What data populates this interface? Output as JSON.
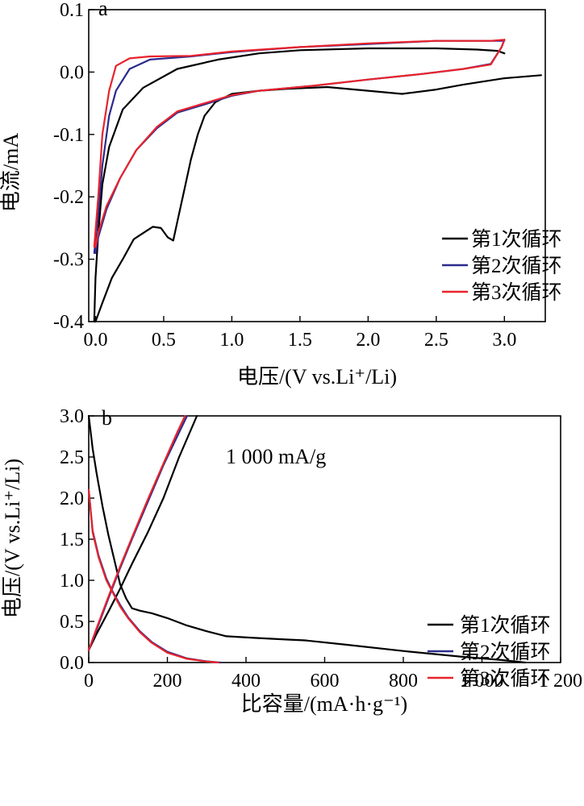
{
  "chart_data": [
    {
      "type": "line",
      "panel_label": "a",
      "xlabel": "电压/(V vs.Li⁺/Li)",
      "ylabel": "电流/mA",
      "xlim": [
        -0.05,
        3.3
      ],
      "ylim": [
        -0.4,
        0.1
      ],
      "xticks": [
        0.0,
        0.5,
        1.0,
        1.5,
        2.0,
        2.5,
        3.0
      ],
      "xtick_labels": [
        "0.0",
        "0.5",
        "1.0",
        "1.5",
        "2.0",
        "2.5",
        "3.0"
      ],
      "yticks": [
        0.1,
        0.0,
        -0.1,
        -0.2,
        -0.3,
        -0.4
      ],
      "ytick_labels": [
        "0.1",
        "0.0",
        "-0.1",
        "-0.2",
        "-0.3",
        "-0.4"
      ],
      "legend_position": "bottom-right",
      "grid": false,
      "series": [
        {
          "name": "第1次循环",
          "color": "#000000",
          "points": [
            [
              3.27,
              -0.005
            ],
            [
              3.0,
              -0.01
            ],
            [
              2.7,
              -0.02
            ],
            [
              2.5,
              -0.028
            ],
            [
              2.25,
              -0.035
            ],
            [
              2.0,
              -0.03
            ],
            [
              1.7,
              -0.024
            ],
            [
              1.4,
              -0.027
            ],
            [
              1.2,
              -0.03
            ],
            [
              1.0,
              -0.035
            ],
            [
              0.88,
              -0.048
            ],
            [
              0.8,
              -0.07
            ],
            [
              0.75,
              -0.1
            ],
            [
              0.7,
              -0.14
            ],
            [
              0.65,
              -0.19
            ],
            [
              0.6,
              -0.24
            ],
            [
              0.57,
              -0.27
            ],
            [
              0.53,
              -0.265
            ],
            [
              0.48,
              -0.25
            ],
            [
              0.42,
              -0.248
            ],
            [
              0.35,
              -0.258
            ],
            [
              0.28,
              -0.268
            ],
            [
              0.2,
              -0.3
            ],
            [
              0.12,
              -0.33
            ],
            [
              0.05,
              -0.37
            ],
            [
              0.0,
              -0.4
            ],
            [
              -0.01,
              -0.4
            ],
            [
              0.0,
              -0.33
            ],
            [
              0.02,
              -0.26
            ],
            [
              0.05,
              -0.18
            ],
            [
              0.1,
              -0.12
            ],
            [
              0.2,
              -0.06
            ],
            [
              0.35,
              -0.025
            ],
            [
              0.6,
              0.005
            ],
            [
              0.9,
              0.02
            ],
            [
              1.2,
              0.03
            ],
            [
              1.5,
              0.035
            ],
            [
              2.0,
              0.038
            ],
            [
              2.5,
              0.038
            ],
            [
              2.8,
              0.036
            ],
            [
              2.95,
              0.034
            ],
            [
              3.0,
              0.03
            ]
          ]
        },
        {
          "name": "第2次循环",
          "color": "#2b2a8c",
          "points": [
            [
              3.0,
              0.052
            ],
            [
              2.98,
              0.04
            ],
            [
              2.9,
              0.013
            ],
            [
              2.7,
              0.005
            ],
            [
              2.4,
              -0.003
            ],
            [
              2.0,
              -0.012
            ],
            [
              1.6,
              -0.022
            ],
            [
              1.2,
              -0.03
            ],
            [
              1.0,
              -0.038
            ],
            [
              0.8,
              -0.052
            ],
            [
              0.6,
              -0.065
            ],
            [
              0.45,
              -0.09
            ],
            [
              0.3,
              -0.125
            ],
            [
              0.18,
              -0.17
            ],
            [
              0.08,
              -0.22
            ],
            [
              0.02,
              -0.265
            ],
            [
              0.0,
              -0.29
            ],
            [
              -0.01,
              -0.29
            ],
            [
              0.02,
              -0.23
            ],
            [
              0.05,
              -0.15
            ],
            [
              0.1,
              -0.07
            ],
            [
              0.15,
              -0.03
            ],
            [
              0.25,
              0.005
            ],
            [
              0.4,
              0.02
            ],
            [
              0.7,
              0.025
            ],
            [
              1.0,
              0.032
            ],
            [
              1.5,
              0.04
            ],
            [
              2.0,
              0.045
            ],
            [
              2.5,
              0.05
            ],
            [
              2.9,
              0.05
            ],
            [
              3.0,
              0.05
            ]
          ]
        },
        {
          "name": "第3次循环",
          "color": "#e8232c",
          "points": [
            [
              3.0,
              0.052
            ],
            [
              2.98,
              0.04
            ],
            [
              2.9,
              0.012
            ],
            [
              2.7,
              0.005
            ],
            [
              2.4,
              -0.003
            ],
            [
              2.0,
              -0.012
            ],
            [
              1.6,
              -0.022
            ],
            [
              1.2,
              -0.03
            ],
            [
              1.0,
              -0.037
            ],
            [
              0.8,
              -0.05
            ],
            [
              0.6,
              -0.063
            ],
            [
              0.45,
              -0.088
            ],
            [
              0.3,
              -0.125
            ],
            [
              0.18,
              -0.17
            ],
            [
              0.08,
              -0.215
            ],
            [
              0.02,
              -0.258
            ],
            [
              0.0,
              -0.28
            ],
            [
              -0.01,
              -0.28
            ],
            [
              0.02,
              -0.2
            ],
            [
              0.05,
              -0.1
            ],
            [
              0.1,
              -0.03
            ],
            [
              0.15,
              0.01
            ],
            [
              0.25,
              0.022
            ],
            [
              0.4,
              0.025
            ],
            [
              0.7,
              0.026
            ],
            [
              1.0,
              0.033
            ],
            [
              1.5,
              0.04
            ],
            [
              2.0,
              0.046
            ],
            [
              2.5,
              0.05
            ],
            [
              2.9,
              0.05
            ],
            [
              3.0,
              0.052
            ]
          ]
        }
      ]
    },
    {
      "type": "line",
      "panel_label": "b",
      "xlabel": "比容量/(mA·h·g⁻¹)",
      "ylabel": "电压/(V vs.Li⁺/Li)",
      "xlim": [
        0,
        1200
      ],
      "ylim": [
        0.0,
        3.0
      ],
      "xticks": [
        0,
        200,
        400,
        600,
        800,
        1000,
        1200
      ],
      "xtick_labels": [
        "0",
        "200",
        "400",
        "600",
        "800",
        "1 000",
        "1 200"
      ],
      "yticks": [
        3.0,
        2.5,
        2.0,
        1.5,
        1.0,
        0.5,
        0.0
      ],
      "ytick_labels": [
        "3.0",
        "2.5",
        "2.0",
        "1.5",
        "1.0",
        "0.5",
        "0.0"
      ],
      "annotation": "1 000 mA/g",
      "legend_position": "bottom-right",
      "grid": false,
      "series": [
        {
          "name": "第1次循环",
          "color": "#000000",
          "points": [
            [
              0,
              3.0
            ],
            [
              10,
              2.6
            ],
            [
              20,
              2.3
            ],
            [
              35,
              1.9
            ],
            [
              50,
              1.55
            ],
            [
              65,
              1.25
            ],
            [
              80,
              0.95
            ],
            [
              95,
              0.78
            ],
            [
              110,
              0.66
            ],
            [
              130,
              0.63
            ],
            [
              160,
              0.6
            ],
            [
              200,
              0.54
            ],
            [
              250,
              0.45
            ],
            [
              300,
              0.38
            ],
            [
              350,
              0.32
            ],
            [
              420,
              0.3
            ],
            [
              500,
              0.28
            ],
            [
              550,
              0.27
            ],
            [
              650,
              0.22
            ],
            [
              800,
              0.14
            ],
            [
              950,
              0.07
            ],
            [
              1050,
              0.03
            ],
            [
              1110,
              0.0
            ],
            [
              0,
              0.15
            ],
            [
              20,
              0.35
            ],
            [
              50,
              0.62
            ],
            [
              80,
              0.9
            ],
            [
              110,
              1.2
            ],
            [
              150,
              1.58
            ],
            [
              190,
              2.0
            ],
            [
              230,
              2.5
            ],
            [
              275,
              3.0
            ]
          ]
        },
        {
          "name": "第2次循环",
          "color": "#2b2a8c",
          "points": [
            [
              0,
              2.1
            ],
            [
              10,
              1.6
            ],
            [
              25,
              1.3
            ],
            [
              45,
              1.02
            ],
            [
              60,
              0.87
            ],
            [
              80,
              0.7
            ],
            [
              100,
              0.55
            ],
            [
              130,
              0.38
            ],
            [
              160,
              0.25
            ],
            [
              200,
              0.13
            ],
            [
              250,
              0.05
            ],
            [
              300,
              0.015
            ],
            [
              335,
              0.0
            ],
            [
              0,
              0.15
            ],
            [
              20,
              0.4
            ],
            [
              50,
              0.78
            ],
            [
              80,
              1.15
            ],
            [
              110,
              1.5
            ],
            [
              150,
              1.95
            ],
            [
              190,
              2.4
            ],
            [
              230,
              2.8
            ],
            [
              250,
              3.0
            ]
          ]
        },
        {
          "name": "第3次循环",
          "color": "#e8232c",
          "points": [
            [
              0,
              2.1
            ],
            [
              10,
              1.58
            ],
            [
              25,
              1.28
            ],
            [
              45,
              1.0
            ],
            [
              60,
              0.86
            ],
            [
              80,
              0.68
            ],
            [
              100,
              0.54
            ],
            [
              130,
              0.37
            ],
            [
              160,
              0.24
            ],
            [
              200,
              0.12
            ],
            [
              250,
              0.045
            ],
            [
              300,
              0.012
            ],
            [
              330,
              0.0
            ],
            [
              0,
              0.15
            ],
            [
              20,
              0.42
            ],
            [
              50,
              0.8
            ],
            [
              80,
              1.17
            ],
            [
              110,
              1.52
            ],
            [
              150,
              1.98
            ],
            [
              190,
              2.42
            ],
            [
              225,
              2.8
            ],
            [
              245,
              3.0
            ]
          ]
        }
      ]
    }
  ]
}
